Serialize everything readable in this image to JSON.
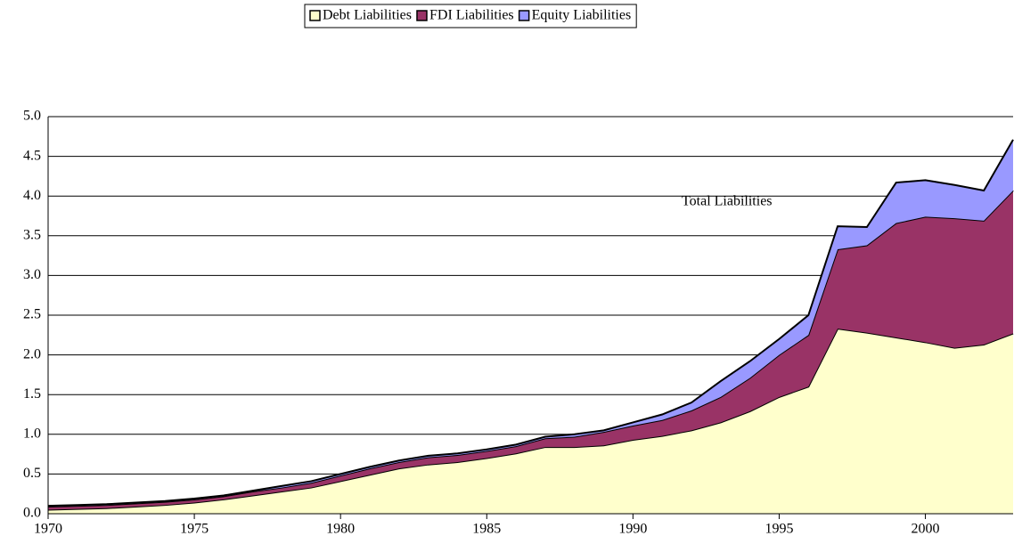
{
  "chart_data": {
    "type": "stacked_area",
    "annotation": "Total Liabilities",
    "x": [
      1970,
      1971,
      1972,
      1973,
      1974,
      1975,
      1976,
      1977,
      1978,
      1979,
      1980,
      1981,
      1982,
      1983,
      1984,
      1985,
      1986,
      1987,
      1988,
      1989,
      1990,
      1991,
      1992,
      1993,
      1994,
      1995,
      1996,
      1997,
      1998,
      1999,
      2000,
      2001,
      2002,
      2003
    ],
    "xlim": [
      1970,
      2003
    ],
    "xticks": [
      1970,
      1975,
      1980,
      1985,
      1990,
      1995,
      2000
    ],
    "ylim": [
      0,
      5
    ],
    "yticks": [
      {
        "value": 0,
        "label": "0.0"
      },
      0.5,
      {
        "value": 1,
        "label": "1.0"
      },
      1.5,
      {
        "value": 2,
        "label": "2.0"
      },
      2.5,
      {
        "value": 3,
        "label": "3.0"
      },
      3.5,
      {
        "value": 4,
        "label": "4.0"
      },
      4.5,
      {
        "value": 5,
        "label": "5.0"
      }
    ],
    "grid": true,
    "legend": "top",
    "series": [
      {
        "name": "Debt Liabilities",
        "color": "#ffffcc",
        "values": [
          0.05,
          0.06,
          0.07,
          0.09,
          0.11,
          0.14,
          0.18,
          0.23,
          0.28,
          0.33,
          0.41,
          0.49,
          0.57,
          0.62,
          0.65,
          0.7,
          0.76,
          0.84,
          0.84,
          0.86,
          0.93,
          0.98,
          1.05,
          1.15,
          1.29,
          1.47,
          1.6,
          2.33,
          2.28,
          2.22,
          2.16,
          2.09,
          2.13,
          2.27
        ]
      },
      {
        "name": "FDI Liabilities",
        "color": "#993366",
        "values": [
          0.04,
          0.04,
          0.04,
          0.04,
          0.04,
          0.04,
          0.04,
          0.05,
          0.05,
          0.06,
          0.07,
          0.08,
          0.08,
          0.09,
          0.09,
          0.09,
          0.09,
          0.11,
          0.13,
          0.17,
          0.18,
          0.2,
          0.25,
          0.32,
          0.42,
          0.53,
          0.65,
          1.0,
          1.1,
          1.44,
          1.58,
          1.63,
          1.56,
          1.8
        ]
      },
      {
        "name": "Equity Liabilities",
        "color": "#9999ff",
        "values": [
          0.01,
          0.01,
          0.01,
          0.01,
          0.01,
          0.01,
          0.01,
          0.01,
          0.02,
          0.02,
          0.02,
          0.02,
          0.02,
          0.02,
          0.02,
          0.02,
          0.02,
          0.02,
          0.03,
          0.02,
          0.04,
          0.07,
          0.1,
          0.2,
          0.21,
          0.2,
          0.25,
          0.29,
          0.23,
          0.51,
          0.46,
          0.42,
          0.38,
          0.64
        ]
      }
    ]
  }
}
